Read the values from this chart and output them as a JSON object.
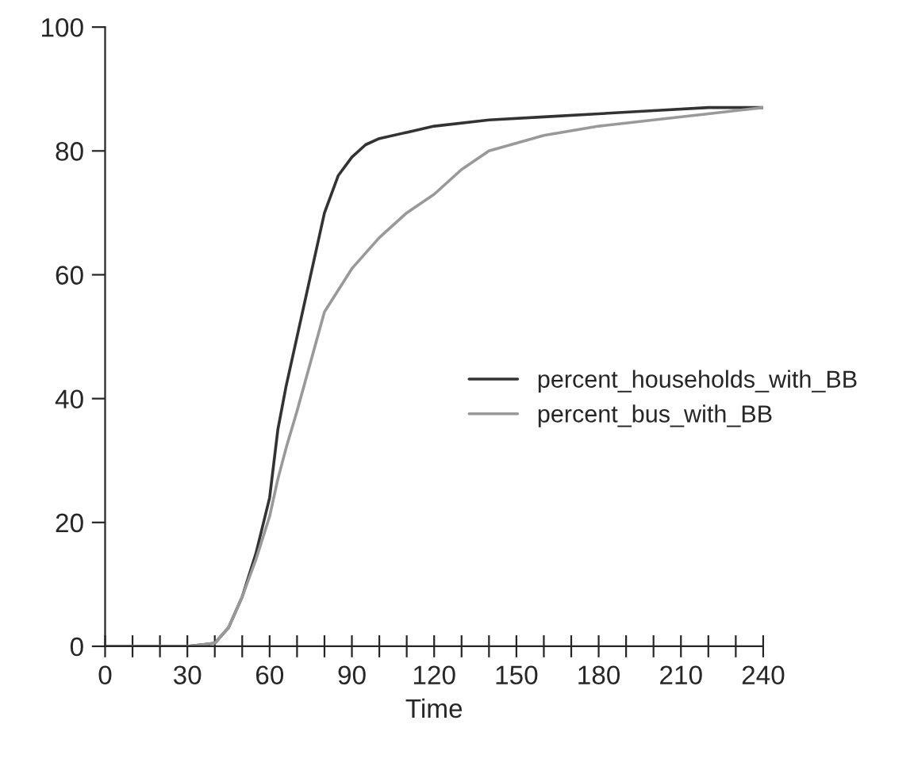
{
  "chart_data": {
    "type": "line",
    "xlabel": "Time",
    "xlim": [
      0,
      240
    ],
    "ylim": [
      0,
      100
    ],
    "xticks": [
      0,
      {
        "value": 10,
        "label": null
      },
      {
        "value": 20,
        "label": null
      },
      30,
      {
        "value": 40,
        "label": null
      },
      {
        "value": 50,
        "label": null
      },
      60,
      {
        "value": 70,
        "label": null
      },
      {
        "value": 80,
        "label": null
      },
      90,
      {
        "value": 100,
        "label": null
      },
      {
        "value": 110,
        "label": null
      },
      120,
      {
        "value": 130,
        "label": null
      },
      {
        "value": 140,
        "label": null
      },
      150,
      {
        "value": 160,
        "label": null
      },
      {
        "value": 170,
        "label": null
      },
      180,
      {
        "value": 190,
        "label": null
      },
      {
        "value": 200,
        "label": null
      },
      210,
      {
        "value": 220,
        "label": null
      },
      {
        "value": 230,
        "label": null
      },
      240
    ],
    "yticks": [
      0,
      20,
      40,
      60,
      80,
      100
    ],
    "legend": "right",
    "grid": false,
    "marker": "none",
    "line_style": "solid",
    "series": [
      {
        "name": "percent_households_with_BB",
        "color": "#333333",
        "x": [
          0,
          30,
          40,
          45,
          50,
          55,
          60,
          63,
          66,
          70,
          75,
          80,
          85,
          90,
          95,
          100,
          110,
          120,
          140,
          160,
          180,
          200,
          220,
          240
        ],
        "values": [
          0,
          0,
          0.5,
          3,
          8,
          15,
          24,
          35,
          42,
          50,
          60,
          70,
          76,
          79,
          81,
          82,
          83,
          84,
          85,
          85.5,
          86,
          86.5,
          87,
          87
        ]
      },
      {
        "name": "percent_bus_with_BB",
        "color": "#999999",
        "x": [
          0,
          30,
          40,
          45,
          50,
          55,
          60,
          63,
          66,
          70,
          75,
          80,
          90,
          100,
          110,
          120,
          130,
          140,
          160,
          180,
          200,
          220,
          230,
          240
        ],
        "values": [
          0,
          0,
          0.5,
          3,
          8,
          14,
          21,
          27,
          32,
          38,
          46,
          54,
          61,
          66,
          70,
          73,
          77,
          80,
          82.5,
          84,
          85,
          86,
          86.5,
          87
        ]
      }
    ]
  }
}
